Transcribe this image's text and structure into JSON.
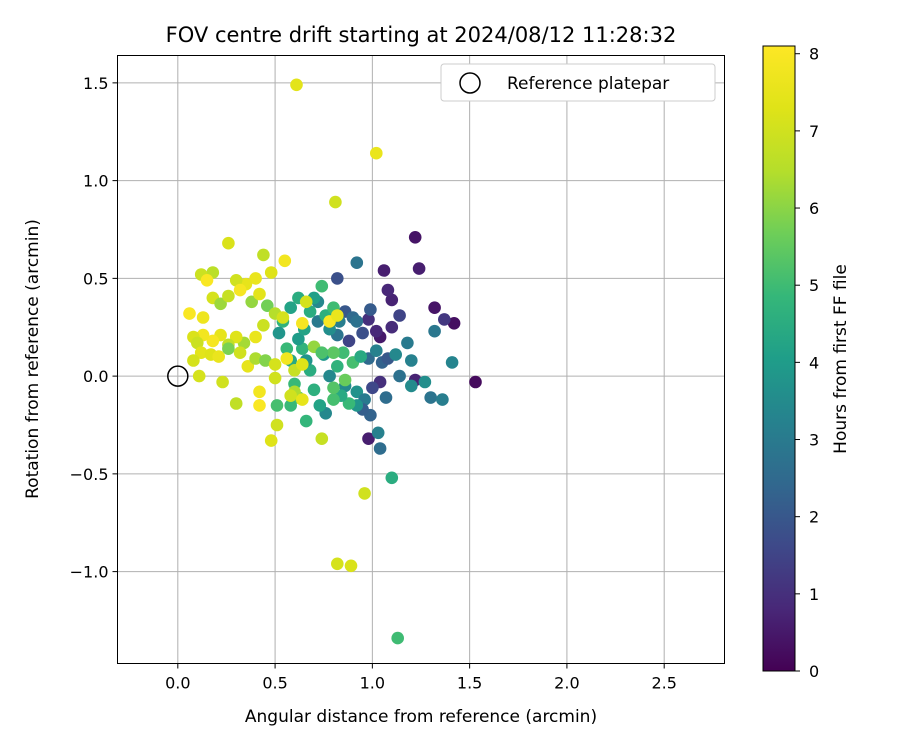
{
  "chart_data": {
    "type": "scatter",
    "title": "FOV centre drift starting at 2024/08/12 11:28:32",
    "xlabel": "Angular distance from reference (arcmin)",
    "ylabel": "Rotation from reference (arcmin)",
    "xlim": [
      -0.31,
      2.81
    ],
    "ylim": [
      -1.47,
      1.64
    ],
    "xticks": [
      0.0,
      0.5,
      1.0,
      1.5,
      2.0,
      2.5
    ],
    "xtick_labels": [
      "0.0",
      "0.5",
      "1.0",
      "1.5",
      "2.0",
      "2.5"
    ],
    "yticks": [
      -1.0,
      -0.5,
      0.0,
      0.5,
      1.0,
      1.5
    ],
    "ytick_labels": [
      "−1.0",
      "−0.5",
      "0.0",
      "0.5",
      "1.0",
      "1.5"
    ],
    "grid": true,
    "legend": {
      "placement": "top-right",
      "entries": [
        {
          "label": "Reference platepar",
          "marker": "open-circle"
        }
      ]
    },
    "reference_point": {
      "x": 0.0,
      "y": 0.0
    },
    "colorbar": {
      "label": "Hours from first FF file",
      "range": [
        0,
        8.1
      ],
      "ticks": [
        0,
        1,
        2,
        3,
        4,
        5,
        6,
        7,
        8
      ],
      "tick_labels": [
        "0",
        "1",
        "2",
        "3",
        "4",
        "5",
        "6",
        "7",
        "8"
      ],
      "colormap": "viridis"
    },
    "points": [
      [
        1.53,
        -0.03,
        0.2
      ],
      [
        1.42,
        0.27,
        0.3
      ],
      [
        1.32,
        0.35,
        0.4
      ],
      [
        1.22,
        0.71,
        0.4
      ],
      [
        1.24,
        0.55,
        0.6
      ],
      [
        1.37,
        0.29,
        1.2
      ],
      [
        1.1,
        0.39,
        0.7
      ],
      [
        1.06,
        0.54,
        0.6
      ],
      [
        1.08,
        0.44,
        0.8
      ],
      [
        1.04,
        0.2,
        0.5
      ],
      [
        1.1,
        0.25,
        0.9
      ],
      [
        1.14,
        0.31,
        1.5
      ],
      [
        0.98,
        0.29,
        1.0
      ],
      [
        1.02,
        0.23,
        0.8
      ],
      [
        1.22,
        -0.02,
        0.7
      ],
      [
        1.04,
        -0.03,
        1.0
      ],
      [
        1.0,
        -0.06,
        1.6
      ],
      [
        0.98,
        -0.32,
        0.6
      ],
      [
        1.03,
        -0.29,
        3.2
      ],
      [
        1.04,
        -0.37,
        2.6
      ],
      [
        1.1,
        -0.52,
        4.5
      ],
      [
        0.96,
        -0.6,
        7.0
      ],
      [
        0.92,
        0.58,
        2.8
      ],
      [
        0.82,
        0.5,
        1.8
      ],
      [
        0.86,
        0.33,
        2.0
      ],
      [
        0.9,
        0.3,
        2.5
      ],
      [
        0.95,
        0.22,
        1.8
      ],
      [
        0.92,
        0.28,
        2.7
      ],
      [
        0.99,
        0.34,
        2.1
      ],
      [
        0.88,
        0.18,
        1.5
      ],
      [
        0.82,
        0.21,
        2.8
      ],
      [
        0.78,
        0.24,
        3.6
      ],
      [
        0.72,
        0.28,
        3.0
      ],
      [
        0.75,
        0.11,
        3.9
      ],
      [
        0.82,
        0.05,
        4.7
      ],
      [
        0.85,
        0.12,
        5.0
      ],
      [
        0.8,
        0.12,
        5.4
      ],
      [
        0.78,
        0.0,
        3.4
      ],
      [
        0.86,
        -0.05,
        3.5
      ],
      [
        0.92,
        -0.08,
        3.7
      ],
      [
        0.96,
        -0.12,
        3.0
      ],
      [
        0.99,
        -0.2,
        2.3
      ],
      [
        0.98,
        0.09,
        2.5
      ],
      [
        1.02,
        0.13,
        3.2
      ],
      [
        1.05,
        0.07,
        2.3
      ],
      [
        1.08,
        0.09,
        2.0
      ],
      [
        1.12,
        0.11,
        3.4
      ],
      [
        1.18,
        0.17,
        3.0
      ],
      [
        1.2,
        0.08,
        3.2
      ],
      [
        1.14,
        0.0,
        2.7
      ],
      [
        1.2,
        -0.05,
        3.5
      ],
      [
        1.27,
        -0.03,
        3.6
      ],
      [
        1.3,
        -0.11,
        2.8
      ],
      [
        1.36,
        -0.12,
        3.1
      ],
      [
        1.32,
        0.23,
        2.9
      ],
      [
        1.41,
        0.07,
        3.3
      ],
      [
        1.07,
        -0.11,
        2.6
      ],
      [
        0.95,
        -0.17,
        2.2
      ],
      [
        0.92,
        -0.15,
        3.8
      ],
      [
        0.88,
        -0.14,
        4.9
      ],
      [
        0.84,
        -0.1,
        4.4
      ],
      [
        0.8,
        -0.12,
        5.1
      ],
      [
        0.76,
        -0.19,
        3.4
      ],
      [
        0.73,
        -0.15,
        4.2
      ],
      [
        0.7,
        -0.07,
        4.6
      ],
      [
        0.68,
        0.03,
        4.5
      ],
      [
        0.66,
        0.08,
        3.8
      ],
      [
        0.64,
        0.14,
        4.7
      ],
      [
        0.62,
        0.19,
        4.0
      ],
      [
        0.65,
        0.24,
        4.2
      ],
      [
        0.68,
        0.33,
        4.5
      ],
      [
        0.72,
        0.38,
        3.4
      ],
      [
        0.76,
        0.31,
        4.6
      ],
      [
        0.8,
        0.35,
        5.0
      ],
      [
        0.83,
        0.28,
        3.1
      ],
      [
        0.74,
        0.46,
        5.0
      ],
      [
        0.7,
        0.4,
        4.1
      ],
      [
        0.62,
        0.4,
        4.5
      ],
      [
        0.58,
        0.35,
        4.2
      ],
      [
        0.54,
        0.28,
        4.7
      ],
      [
        0.52,
        0.22,
        3.8
      ],
      [
        0.56,
        0.14,
        4.9
      ],
      [
        0.58,
        0.08,
        4.4
      ],
      [
        0.6,
        -0.04,
        4.9
      ],
      [
        0.62,
        -0.11,
        5.5
      ],
      [
        0.58,
        -0.15,
        4.9
      ],
      [
        0.51,
        -0.15,
        5.1
      ],
      [
        0.66,
        -0.23,
        4.8
      ],
      [
        0.74,
        -0.32,
        6.8
      ],
      [
        0.8,
        -0.06,
        5.3
      ],
      [
        0.86,
        -0.02,
        5.6
      ],
      [
        0.9,
        0.07,
        5.1
      ],
      [
        0.94,
        0.1,
        4.4
      ],
      [
        0.82,
        -0.96,
        7.1
      ],
      [
        0.89,
        -0.97,
        7.2
      ],
      [
        1.13,
        -1.34,
        5.0
      ],
      [
        0.81,
        0.89,
        7.0
      ],
      [
        1.02,
        1.14,
        7.6
      ],
      [
        0.61,
        1.49,
        7.4
      ],
      [
        0.44,
        0.62,
        6.7
      ],
      [
        0.26,
        0.68,
        7.2
      ],
      [
        0.55,
        0.59,
        7.8
      ],
      [
        0.48,
        0.53,
        7.3
      ],
      [
        0.4,
        0.5,
        7.6
      ],
      [
        0.35,
        0.47,
        7.5
      ],
      [
        0.3,
        0.49,
        7.0
      ],
      [
        0.18,
        0.53,
        6.6
      ],
      [
        0.12,
        0.52,
        6.9
      ],
      [
        0.15,
        0.49,
        8.0
      ],
      [
        0.18,
        0.4,
        7.1
      ],
      [
        0.22,
        0.37,
        6.2
      ],
      [
        0.26,
        0.41,
        6.8
      ],
      [
        0.32,
        0.44,
        7.9
      ],
      [
        0.38,
        0.38,
        6.1
      ],
      [
        0.42,
        0.42,
        7.4
      ],
      [
        0.46,
        0.36,
        5.7
      ],
      [
        0.5,
        0.32,
        6.5
      ],
      [
        0.54,
        0.3,
        7.1
      ],
      [
        0.44,
        0.26,
        6.9
      ],
      [
        0.4,
        0.2,
        7.6
      ],
      [
        0.34,
        0.17,
        6.3
      ],
      [
        0.3,
        0.2,
        7.3
      ],
      [
        0.26,
        0.16,
        6.7
      ],
      [
        0.22,
        0.21,
        7.5
      ],
      [
        0.18,
        0.18,
        7.9
      ],
      [
        0.13,
        0.21,
        7.8
      ],
      [
        0.08,
        0.2,
        7.2
      ],
      [
        0.06,
        0.32,
        8.0
      ],
      [
        0.13,
        0.3,
        7.7
      ],
      [
        0.1,
        0.17,
        6.9
      ],
      [
        0.12,
        0.12,
        7.4
      ],
      [
        0.08,
        0.08,
        7.1
      ],
      [
        0.17,
        0.11,
        7.3
      ],
      [
        0.21,
        0.1,
        7.6
      ],
      [
        0.26,
        0.14,
        5.8
      ],
      [
        0.32,
        0.12,
        7.0
      ],
      [
        0.36,
        0.05,
        7.5
      ],
      [
        0.4,
        0.09,
        6.4
      ],
      [
        0.45,
        0.08,
        5.9
      ],
      [
        0.5,
        0.06,
        7.1
      ],
      [
        0.56,
        0.09,
        7.8
      ],
      [
        0.6,
        0.03,
        6.8
      ],
      [
        0.64,
        0.06,
        7.3
      ],
      [
        0.6,
        -0.08,
        6.4
      ],
      [
        0.58,
        -0.1,
        7.0
      ],
      [
        0.64,
        -0.12,
        7.5
      ],
      [
        0.5,
        -0.01,
        7.0
      ],
      [
        0.42,
        -0.08,
        7.8
      ],
      [
        0.42,
        -0.15,
        8.0
      ],
      [
        0.3,
        -0.14,
        6.7
      ],
      [
        0.23,
        -0.03,
        7.0
      ],
      [
        0.11,
        0.0,
        7.1
      ],
      [
        0.51,
        -0.25,
        7.0
      ],
      [
        0.48,
        -0.33,
        7.3
      ],
      [
        0.66,
        0.38,
        7.1
      ],
      [
        0.64,
        0.27,
        7.9
      ],
      [
        0.78,
        0.28,
        8.0
      ],
      [
        0.82,
        0.31,
        7.6
      ],
      [
        0.7,
        0.15,
        6.1
      ],
      [
        0.74,
        0.12,
        5.2
      ]
    ]
  }
}
